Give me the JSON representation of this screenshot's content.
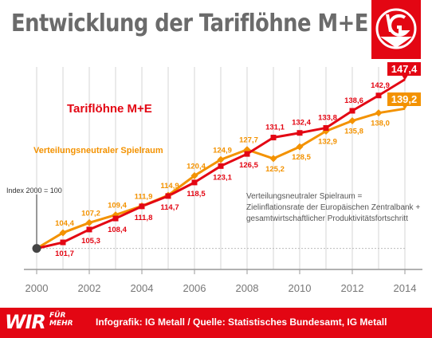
{
  "header": {
    "title": "Entwicklung der Tariflöhne M+E"
  },
  "logo": {
    "name": "ig-metall-logo",
    "text": "IG Metall"
  },
  "footer": {
    "wir": "WIR",
    "wir_small_1": "FÜR",
    "wir_small_2": "MEHR",
    "source": "Infografik: IG Metall / Quelle: Statistisches Bundesamt, IG Metall"
  },
  "note": {
    "line1": "Verteilungsneutraler Spielraum =",
    "line2": "Zielinflationsrate der Europäischen Zentralbank +",
    "line3": "gesamtwirtschaftlicher Produktivitätsfortschritt"
  },
  "colors": {
    "red": "#e30613",
    "orange": "#f39200",
    "grey": "#6b6b6b",
    "axis": "#999999"
  },
  "chart_data": {
    "type": "line",
    "title": "Entwicklung der Tariflöhne M+E",
    "x": [
      2000,
      2001,
      2002,
      2003,
      2004,
      2005,
      2006,
      2007,
      2008,
      2009,
      2010,
      2011,
      2012,
      2013,
      2014
    ],
    "xticks": [
      "2000",
      "2002",
      "2004",
      "2006",
      "2008",
      "2010",
      "2012",
      "2014"
    ],
    "ylim": [
      95,
      150
    ],
    "baseline_label": "Index 2000 = 100",
    "series": [
      {
        "name": "Tariflöhne M+E",
        "color": "#e30613",
        "values": [
          100,
          101.7,
          105.3,
          108.4,
          111.8,
          114.7,
          118.5,
          123.1,
          126.5,
          131.1,
          132.4,
          133.8,
          138.6,
          142.9,
          147.4
        ],
        "labels": [
          "",
          "101,7",
          "105,3",
          "108,4",
          "111,8",
          "114,7",
          "118,5",
          "123,1",
          "126,5",
          "131,1",
          "132,4",
          "133,8",
          "138,6",
          "142,9",
          "147,4"
        ]
      },
      {
        "name": "Verteilungsneutraler Spielraum",
        "color": "#f39200",
        "values": [
          100,
          104.4,
          107.2,
          109.4,
          111.9,
          114.9,
          120.4,
          124.9,
          127.7,
          125.2,
          128.5,
          132.9,
          135.8,
          138.0,
          139.2
        ],
        "labels": [
          "",
          "104,4",
          "107,2",
          "109,4",
          "111,9",
          "114,9",
          "120,4",
          "124,9",
          "127,7",
          "125,2",
          "128,5",
          "132,9",
          "135,8",
          "138,0",
          "139,2"
        ]
      }
    ]
  }
}
